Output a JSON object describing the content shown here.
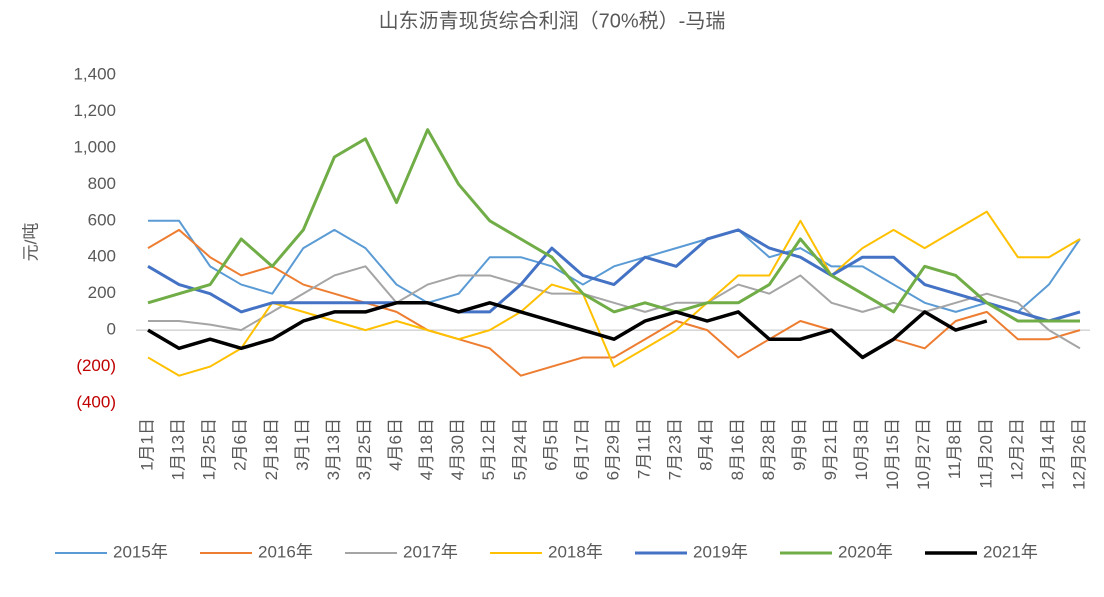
{
  "chart_data": {
    "type": "line",
    "title": "山东沥青现货综合利润（70%税）-马瑞",
    "y_label": "元/吨",
    "categories": [
      "1月1日",
      "1月13日",
      "1月25日",
      "2月6日",
      "2月18日",
      "3月1日",
      "3月13日",
      "3月25日",
      "4月6日",
      "4月18日",
      "4月30日",
      "5月12日",
      "5月24日",
      "6月5日",
      "6月17日",
      "6月29日",
      "7月11日",
      "7月23日",
      "8月4日",
      "8月16日",
      "8月28日",
      "9月9日",
      "9月21日",
      "10月3日",
      "10月15日",
      "10月27日",
      "11月8日",
      "11月20日",
      "12月2日",
      "12月14日",
      "12月26日"
    ],
    "ylim": [
      -400,
      1400
    ],
    "yticks": [
      {
        "value": -400,
        "label": "(400)"
      },
      {
        "value": -200,
        "label": "(200)"
      },
      0,
      200,
      400,
      600,
      800,
      {
        "value": 1000,
        "label": "1,000"
      },
      {
        "value": 1200,
        "label": "1,200"
      },
      {
        "value": 1400,
        "label": "1,400"
      }
    ],
    "negative_tick_color": "#c00000",
    "grid": false,
    "legend": "bottom",
    "series": [
      {
        "name": "2015年",
        "color": "#5b9bd5",
        "line_width": 2,
        "values": [
          600,
          600,
          350,
          250,
          200,
          450,
          550,
          450,
          250,
          150,
          200,
          400,
          400,
          350,
          250,
          350,
          400,
          450,
          500,
          550,
          400,
          450,
          350,
          350,
          250,
          150,
          100,
          150,
          100,
          250,
          500
        ]
      },
      {
        "name": "2016年",
        "color": "#ed7d31",
        "line_width": 2,
        "values": [
          450,
          550,
          400,
          300,
          350,
          250,
          200,
          150,
          100,
          0,
          -50,
          -100,
          -250,
          -200,
          -150,
          -150,
          -50,
          50,
          0,
          -150,
          -50,
          50,
          0,
          -150,
          -50,
          -100,
          50,
          100,
          -50,
          -50,
          0
        ]
      },
      {
        "name": "2017年",
        "color": "#a5a5a5",
        "line_width": 2,
        "values": [
          50,
          50,
          30,
          0,
          100,
          200,
          300,
          350,
          150,
          250,
          300,
          300,
          250,
          200,
          200,
          150,
          100,
          150,
          150,
          250,
          200,
          300,
          150,
          100,
          150,
          100,
          150,
          200,
          150,
          0,
          -100
        ]
      },
      {
        "name": "2018年",
        "color": "#ffc000",
        "line_width": 2,
        "values": [
          -150,
          -250,
          -200,
          -100,
          150,
          100,
          50,
          0,
          50,
          0,
          -50,
          0,
          100,
          250,
          200,
          -200,
          -100,
          0,
          150,
          300,
          300,
          600,
          300,
          450,
          550,
          450,
          550,
          650,
          400,
          400,
          500
        ]
      },
      {
        "name": "2019年",
        "color": "#4472c4",
        "line_width": 3,
        "values": [
          350,
          250,
          200,
          100,
          150,
          150,
          150,
          150,
          150,
          150,
          100,
          100,
          250,
          450,
          300,
          250,
          400,
          350,
          500,
          550,
          450,
          400,
          300,
          400,
          400,
          250,
          200,
          150,
          100,
          50,
          100
        ]
      },
      {
        "name": "2020年",
        "color": "#70ad47",
        "line_width": 3,
        "values": [
          150,
          200,
          250,
          500,
          350,
          550,
          950,
          1050,
          700,
          1100,
          800,
          600,
          500,
          400,
          200,
          100,
          150,
          100,
          150,
          150,
          250,
          500,
          300,
          200,
          100,
          350,
          300,
          150,
          50,
          50,
          50
        ]
      },
      {
        "name": "2021年",
        "color": "#000000",
        "line_width": 3.5,
        "values": [
          0,
          -100,
          -50,
          -100,
          -50,
          50,
          100,
          100,
          150,
          150,
          100,
          150,
          100,
          50,
          0,
          -50,
          50,
          100,
          50,
          100,
          -50,
          -50,
          0,
          -150,
          -50,
          100,
          0,
          50,
          null,
          null,
          null
        ]
      }
    ]
  }
}
